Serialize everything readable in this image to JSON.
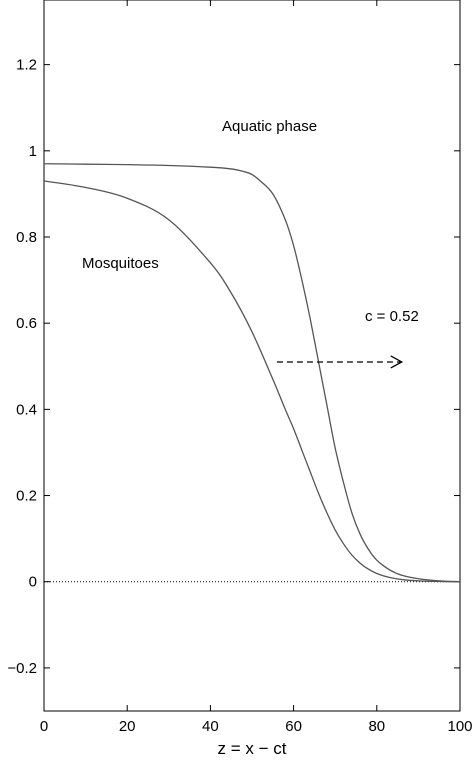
{
  "chart_data": {
    "type": "line",
    "xlabel": "z = x − ct",
    "ylabel": "",
    "title": "",
    "xlim": [
      0,
      100
    ],
    "ylim": [
      -0.3,
      1.35
    ],
    "xticks": [
      0,
      20,
      40,
      60,
      80,
      100
    ],
    "yticks": [
      -0.2,
      0,
      0.2,
      0.4,
      0.6,
      0.8,
      1,
      1.2
    ],
    "xtick_labels": [
      "0",
      "20",
      "40",
      "60",
      "80",
      "100"
    ],
    "ytick_labels": [
      "−0.2",
      "0",
      "0.2",
      "0.4",
      "0.6",
      "0.8",
      "1",
      "1.2"
    ],
    "grid": false,
    "series": [
      {
        "name": "Aquatic phase",
        "color": "#555555",
        "x": [
          0,
          10,
          20,
          30,
          40,
          45,
          48,
          50,
          52,
          55,
          58,
          60,
          62,
          64,
          66,
          68,
          70,
          72,
          74,
          76,
          78,
          80,
          83,
          86,
          90,
          95,
          100
        ],
        "y": [
          0.97,
          0.969,
          0.968,
          0.966,
          0.962,
          0.958,
          0.952,
          0.945,
          0.93,
          0.9,
          0.84,
          0.78,
          0.7,
          0.61,
          0.51,
          0.41,
          0.31,
          0.23,
          0.16,
          0.11,
          0.075,
          0.05,
          0.028,
          0.015,
          0.007,
          0.002,
          0.0
        ]
      },
      {
        "name": "Mosquitoes",
        "color": "#555555",
        "x": [
          0,
          10,
          20,
          30,
          40,
          45,
          50,
          55,
          58,
          60,
          62,
          64,
          66,
          68,
          70,
          72,
          74,
          76,
          78,
          80,
          83,
          86,
          90,
          95,
          100
        ],
        "y": [
          0.93,
          0.915,
          0.89,
          0.84,
          0.74,
          0.67,
          0.58,
          0.47,
          0.4,
          0.355,
          0.305,
          0.255,
          0.205,
          0.16,
          0.12,
          0.088,
          0.062,
          0.043,
          0.029,
          0.019,
          0.01,
          0.005,
          0.002,
          0.0005,
          0.0
        ]
      }
    ],
    "reference_line": {
      "y": 0,
      "style": "dotted"
    },
    "annotations": {
      "aquatic_label": "Aquatic phase",
      "mosquito_label": "Mosquitoes",
      "speed_label": "c = 0.52",
      "arrow": {
        "x_start": 56,
        "x_end": 86,
        "y": 0.51
      }
    }
  }
}
